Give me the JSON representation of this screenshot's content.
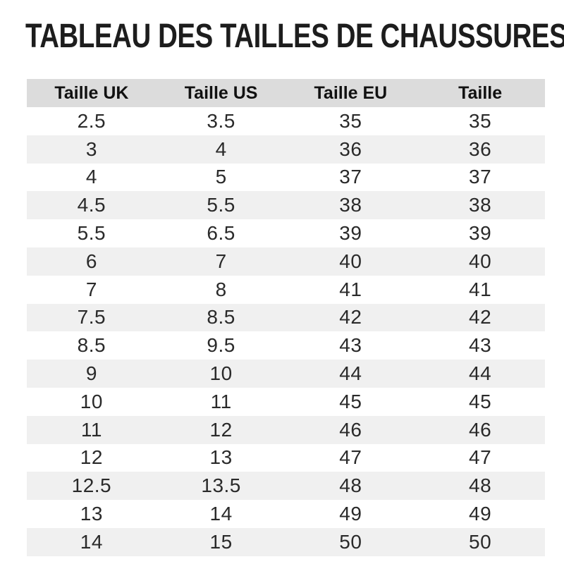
{
  "title": "TABLEAU DES TAILLES DE CHAUSSURES",
  "table": {
    "headers": [
      "Taille UK",
      "Taille US",
      "Taille EU",
      "Taille"
    ],
    "rows": [
      [
        "2.5",
        "3.5",
        "35",
        "35"
      ],
      [
        "3",
        "4",
        "36",
        "36"
      ],
      [
        "4",
        "5",
        "37",
        "37"
      ],
      [
        "4.5",
        "5.5",
        "38",
        "38"
      ],
      [
        "5.5",
        "6.5",
        "39",
        "39"
      ],
      [
        "6",
        "7",
        "40",
        "40"
      ],
      [
        "7",
        "8",
        "41",
        "41"
      ],
      [
        "7.5",
        "8.5",
        "42",
        "42"
      ],
      [
        "8.5",
        "9.5",
        "43",
        "43"
      ],
      [
        "9",
        "10",
        "44",
        "44"
      ],
      [
        "10",
        "11",
        "45",
        "45"
      ],
      [
        "11",
        "12",
        "46",
        "46"
      ],
      [
        "12",
        "13",
        "47",
        "47"
      ],
      [
        "12.5",
        "13.5",
        "48",
        "48"
      ],
      [
        "13",
        "14",
        "49",
        "49"
      ],
      [
        "14",
        "15",
        "50",
        "50"
      ]
    ],
    "colors": {
      "header_bg": "#dcdcdc",
      "stripe_bg": "#f0f0f0",
      "title_color": "#1d1d1d",
      "header_text": "#111111",
      "cell_text": "#2a2a2a"
    }
  }
}
